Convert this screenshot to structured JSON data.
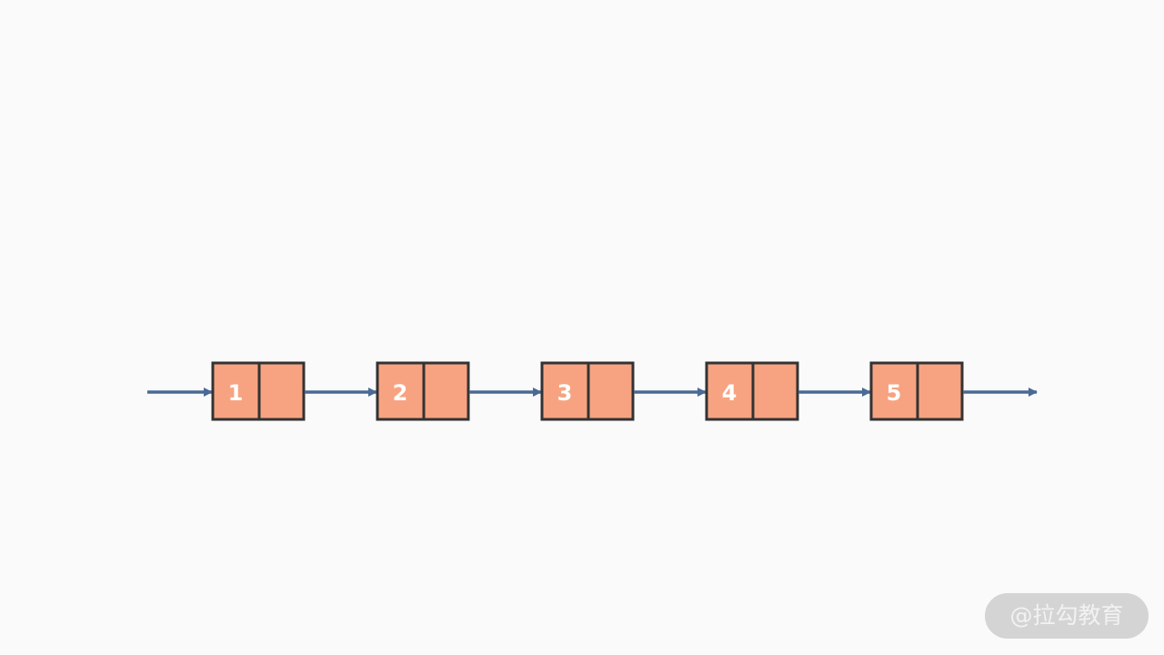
{
  "diagram": {
    "type": "singly-linked-list",
    "nodes": [
      {
        "value": "1"
      },
      {
        "value": "2"
      },
      {
        "value": "3"
      },
      {
        "value": "4"
      },
      {
        "value": "5"
      }
    ],
    "colors": {
      "node_fill": "#f7a381",
      "node_border": "#333333",
      "arrow": "#4a6a96",
      "text": "#ffffff"
    }
  },
  "watermark": {
    "text": "@拉勾教育"
  }
}
